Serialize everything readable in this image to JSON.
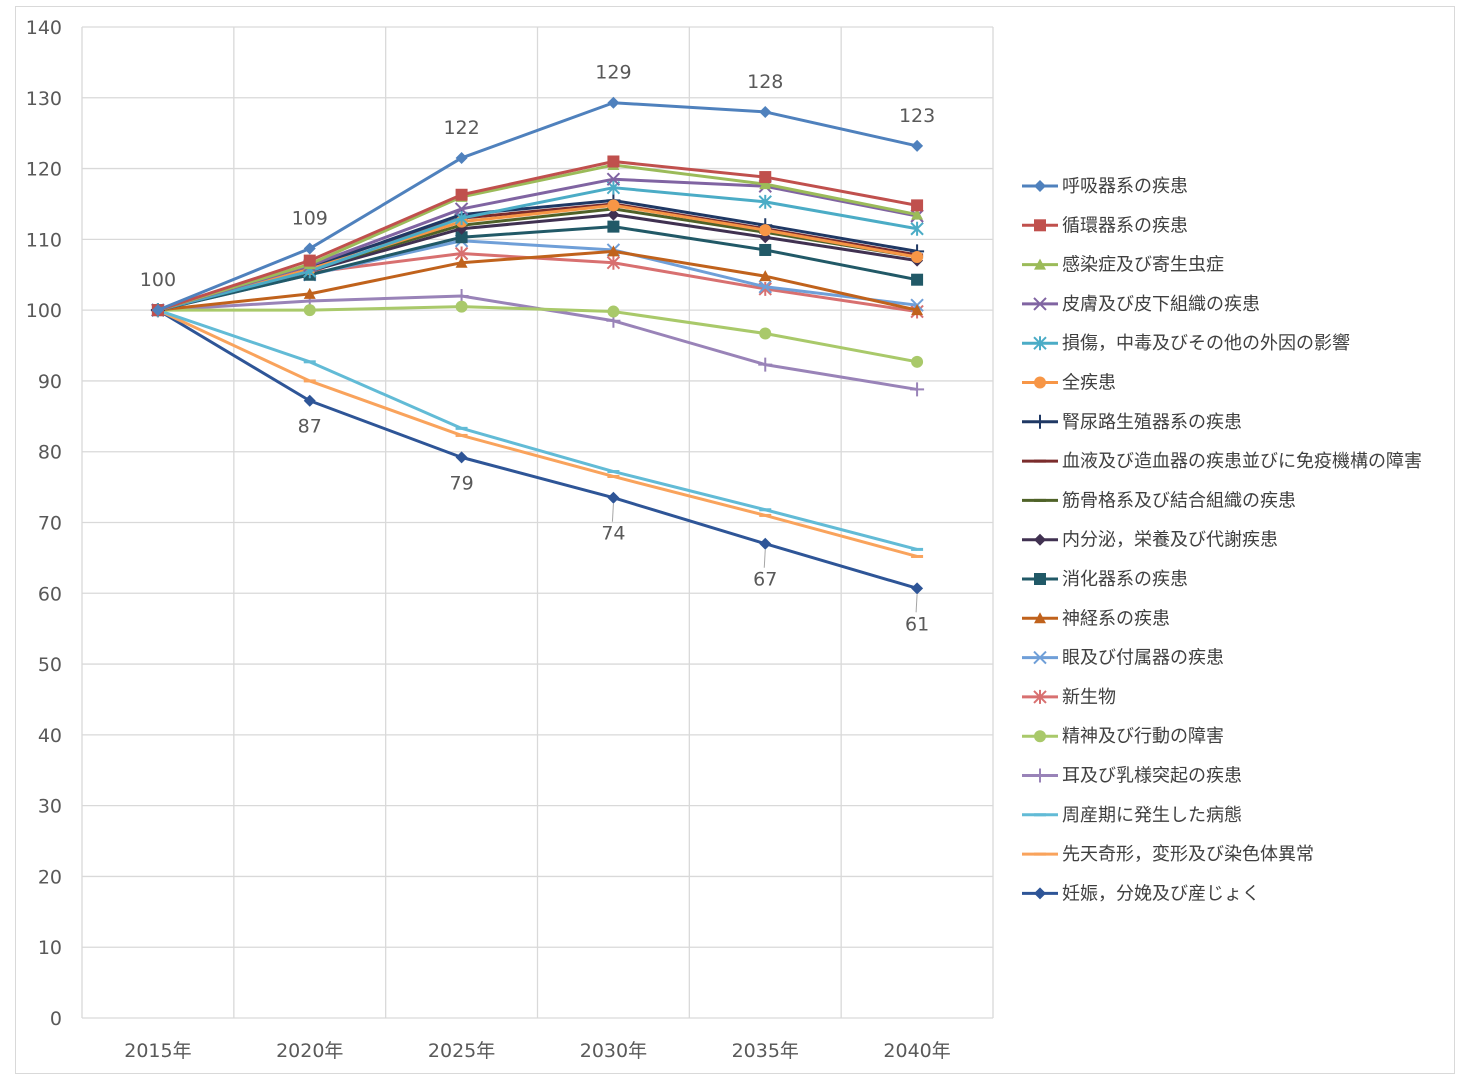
{
  "chart_data": {
    "type": "line",
    "title": "",
    "xlabel": "",
    "ylabel": "",
    "categories": [
      "2015年",
      "2020年",
      "2025年",
      "2030年",
      "2035年",
      "2040年"
    ],
    "ylim": [
      0,
      140
    ],
    "yticks": [
      0,
      10,
      20,
      30,
      40,
      50,
      60,
      70,
      80,
      90,
      100,
      110,
      120,
      130,
      140
    ],
    "grid": true,
    "legend_position": "right",
    "series": [
      {
        "name": "呼吸器系の疾患",
        "color": "#4f81bd",
        "marker": "diamond",
        "values": [
          100,
          108.7,
          121.5,
          129.3,
          128.0,
          123.2
        ],
        "labels": [
          "100",
          "109",
          "122",
          "129",
          "128",
          "123"
        ]
      },
      {
        "name": "循環器系の疾患",
        "color": "#c0504d",
        "marker": "square",
        "values": [
          100,
          107.0,
          116.3,
          121.0,
          118.8,
          114.8
        ]
      },
      {
        "name": "感染症及び寄生虫症",
        "color": "#9bbb59",
        "marker": "triangle",
        "values": [
          100,
          106.5,
          116.0,
          120.5,
          117.8,
          113.5
        ]
      },
      {
        "name": "皮膚及び皮下組織の疾患",
        "color": "#8064a2",
        "marker": "x",
        "values": [
          100,
          106.3,
          114.3,
          118.5,
          117.5,
          113.3
        ]
      },
      {
        "name": "損傷，中毒及びその他の外因の影響",
        "color": "#4bacc6",
        "marker": "star",
        "values": [
          100,
          105.5,
          113.0,
          117.3,
          115.3,
          111.5
        ]
      },
      {
        "name": "全疾患",
        "color": "#f79646",
        "marker": "circle",
        "values": [
          100,
          105.8,
          112.5,
          114.8,
          111.3,
          107.5
        ]
      },
      {
        "name": "腎尿路生殖器系の疾患",
        "color": "#1f3864",
        "marker": "plus",
        "values": [
          100,
          106.0,
          113.5,
          115.5,
          112.0,
          108.3
        ]
      },
      {
        "name": "血液及び造血器の疾患並びに免疫機構の障害",
        "color": "#7b2c2c",
        "marker": "dash",
        "values": [
          100,
          106.3,
          113.0,
          115.0,
          111.5,
          107.8
        ]
      },
      {
        "name": "筋骨格系及び結合組織の疾患",
        "color": "#4f6228",
        "marker": "dash",
        "values": [
          100,
          105.8,
          112.0,
          114.3,
          111.0,
          107.5
        ]
      },
      {
        "name": "内分泌，栄養及び代謝疾患",
        "color": "#403151",
        "marker": "diamond",
        "values": [
          100,
          105.5,
          111.5,
          113.5,
          110.3,
          107.0
        ]
      },
      {
        "name": "消化器系の疾患",
        "color": "#215967",
        "marker": "square",
        "values": [
          100,
          105.0,
          110.3,
          111.8,
          108.5,
          104.3
        ]
      },
      {
        "name": "神経系の疾患",
        "color": "#c0621c",
        "marker": "triangle",
        "values": [
          100,
          102.3,
          106.7,
          108.3,
          104.8,
          100.0
        ]
      },
      {
        "name": "眼及び付属器の疾患",
        "color": "#6f9fd8",
        "marker": "x",
        "values": [
          100,
          105.0,
          109.8,
          108.5,
          103.3,
          100.7
        ]
      },
      {
        "name": "新生物",
        "color": "#d87070",
        "marker": "star",
        "values": [
          100,
          105.3,
          108.0,
          106.7,
          103.0,
          99.8
        ]
      },
      {
        "name": "精神及び行動の障害",
        "color": "#a9c96a",
        "marker": "circle",
        "values": [
          100,
          100.0,
          100.5,
          99.8,
          96.7,
          92.7
        ]
      },
      {
        "name": "耳及び乳様突起の疾患",
        "color": "#9983b8",
        "marker": "plus",
        "values": [
          100,
          101.3,
          102.0,
          98.5,
          92.3,
          88.8
        ]
      },
      {
        "name": "周産期に発生した病態",
        "color": "#62bbd6",
        "marker": "dash",
        "values": [
          100,
          92.7,
          83.3,
          77.2,
          71.8,
          66.2
        ]
      },
      {
        "name": "先天奇形，変形及び染色体異常",
        "color": "#f9a35c",
        "marker": "dash",
        "values": [
          100,
          90.0,
          82.3,
          76.5,
          71.0,
          65.2
        ]
      },
      {
        "name": "妊娠，分娩及び産じょく",
        "color": "#2e5597",
        "marker": "diamond",
        "values": [
          100,
          87.2,
          79.2,
          73.5,
          67.0,
          60.7
        ],
        "labels": [
          "",
          "87",
          "79",
          "74",
          "67",
          "61"
        ]
      }
    ]
  }
}
